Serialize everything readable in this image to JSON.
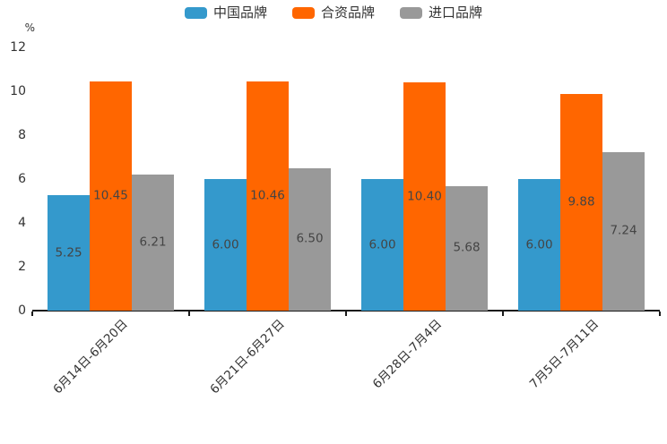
{
  "legend": {
    "items": [
      {
        "label": "中国品牌",
        "color": "#3499CC"
      },
      {
        "label": "合资品牌",
        "color": "#FF6600"
      },
      {
        "label": "进口品牌",
        "color": "#999999"
      }
    ]
  },
  "chart_data": {
    "type": "bar",
    "title": "",
    "xlabel": "",
    "ylabel": "%",
    "ylim": [
      0,
      12
    ],
    "yticks": [
      0,
      2,
      4,
      6,
      8,
      10,
      12
    ],
    "grid": false,
    "legend_position": "top-center",
    "value_label_position": "inside-center",
    "categories": [
      "6月14日-6月20日",
      "6月21日-6月27日",
      "6月28日-7月4日",
      "7月5日-7月11日"
    ],
    "series": [
      {
        "name": "中国品牌",
        "color": "#3499CC",
        "values": [
          5.25,
          6.0,
          6.0,
          6.0
        ],
        "value_labels": [
          "5.25",
          "6.00",
          "6.00",
          "6.00"
        ]
      },
      {
        "name": "合资品牌",
        "color": "#FF6600",
        "values": [
          10.45,
          10.46,
          10.4,
          9.88
        ],
        "value_labels": [
          "10.45",
          "10.46",
          "10.40",
          "9.88"
        ]
      },
      {
        "name": "进口品牌",
        "color": "#999999",
        "values": [
          6.21,
          6.5,
          5.68,
          7.24
        ],
        "value_labels": [
          "6.21",
          "6.50",
          "5.68",
          "7.24"
        ]
      }
    ]
  }
}
